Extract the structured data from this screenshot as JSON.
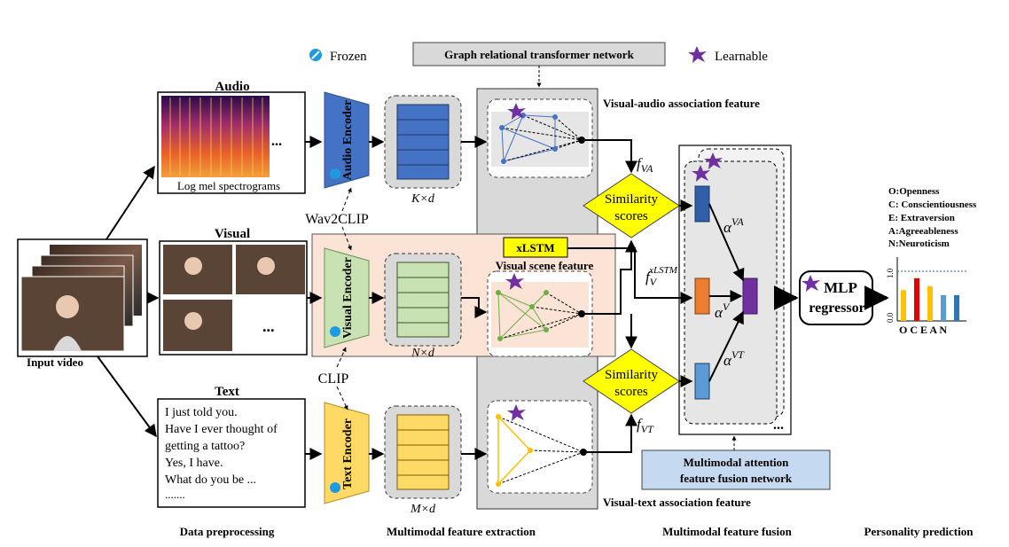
{
  "legend": {
    "frozen_label": "Frozen",
    "learnable_label": "Learnable",
    "graph_network_label": "Graph relational transformer network"
  },
  "input": {
    "label": "Input video"
  },
  "preprocessing": {
    "audio_title": "Audio",
    "spectrogram_caption": "Log mel spectrograms",
    "visual_title": "Visual",
    "text_title": "Text",
    "ellipsis": "...",
    "transcript_lines": [
      "I just told you.",
      "Have I ever thought of",
      "getting a tattoo?",
      "Yes, I have.",
      "What do you be ...",
      "......."
    ]
  },
  "encoders": {
    "audio": "Audio Encoder",
    "visual": "Visual Encoder",
    "text": "Text Encoder",
    "wav2clip": "Wav2CLIP",
    "clip": "CLIP"
  },
  "features": {
    "audio_dim": "K×d",
    "visual_dim": "N×d",
    "text_dim": "M×d"
  },
  "extraction": {
    "xlstm": "xLSTM",
    "visual_scene": "Visual scene feature",
    "va_assoc": "Visual-audio association feature",
    "vt_assoc": "Visual-text association feature"
  },
  "fusion": {
    "similarity": "Similarity scores",
    "f_va": "f",
    "f_va_sub": "VA",
    "f_v": "f",
    "f_v_sub": "V",
    "f_v_sup": "xLSTM",
    "f_vt": "f",
    "f_vt_sub": "VT",
    "alpha_va": "α",
    "alpha_va_sup": "VA",
    "alpha_v": "α",
    "alpha_v_sup": "V",
    "alpha_vt": "α",
    "alpha_vt_sup": "VT",
    "attention_network": "Multimodal attention feature fusion network",
    "ellipsis": "..."
  },
  "prediction": {
    "mlp": "MLP regressor",
    "traits": [
      "O:Openness",
      "C: Conscientiousness",
      "E: Extraversion",
      "A:Agreeableness",
      "N:Neuroticism"
    ],
    "axis_ticks": [
      "1.0",
      "0.0"
    ],
    "axis_letters": "O C E A N"
  },
  "stages": {
    "s1": "Data preprocessing",
    "s2": "Multimodal feature extraction",
    "s3": "Multimodal feature fusion",
    "s4": "Personality prediction"
  },
  "colors": {
    "audio_encoder": "#4472c4",
    "visual_encoder": "#c9e2b3",
    "text_encoder": "#ffd966",
    "learnable_star": "#7030a0",
    "similarity": "#ffff00",
    "xlstm_band": "#fbe3d6",
    "fusion_col": "#d9d9d9",
    "attention_box": "#c5d9f1",
    "bar_colors": [
      "#ffc000",
      "#e00000",
      "#ffc000",
      "#5b9bd5",
      "#2e75b6"
    ]
  },
  "chart_data": {
    "type": "bar",
    "categories": [
      "O",
      "C",
      "E",
      "A",
      "N"
    ],
    "values": [
      0.62,
      0.86,
      0.7,
      0.52,
      0.52
    ],
    "ylim": [
      0,
      1
    ],
    "grid": false
  }
}
